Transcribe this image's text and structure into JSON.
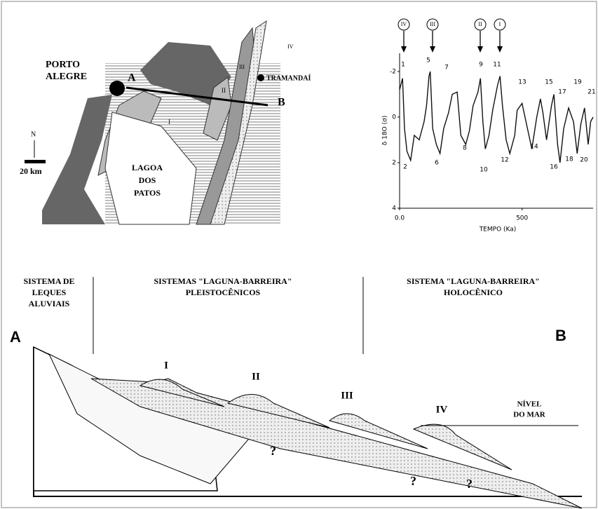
{
  "map": {
    "city": [
      "PORTO",
      "ALEGRE"
    ],
    "point_a": "A",
    "point_b": "B",
    "town": "TRAMANDAÍ",
    "north": "N",
    "scale": "20 km",
    "lagoon": [
      "LAGOA",
      "DOS",
      "PATOS"
    ],
    "barriers": [
      "I",
      "II",
      "III",
      "IV"
    ]
  },
  "chart_data": {
    "type": "line",
    "ylabel": "δ 18O (σ)",
    "xlabel": "TEMPO (Ka)",
    "x": [
      0,
      12,
      20,
      30,
      45,
      60,
      80,
      100,
      110,
      120,
      125,
      135,
      150,
      165,
      180,
      200,
      215,
      235,
      250,
      270,
      285,
      300,
      320,
      330,
      340,
      350,
      365,
      380,
      400,
      410,
      420,
      435,
      450,
      470,
      480,
      500,
      520,
      540,
      560,
      575,
      585,
      600,
      620,
      630,
      645,
      655,
      670,
      690,
      710,
      725,
      740,
      755,
      770,
      780,
      790
    ],
    "series": [
      {
        "color": "#111111",
        "values": [
          -1.2,
          -1.7,
          0.5,
          1.5,
          1.9,
          0.8,
          1.0,
          0.2,
          -0.5,
          -1.8,
          -2.0,
          0.5,
          1.2,
          1.6,
          0.5,
          -0.2,
          -1.0,
          -1.1,
          0.8,
          1.2,
          0.6,
          -0.5,
          -1.1,
          -1.7,
          0.2,
          1.4,
          0.8,
          -0.3,
          -1.4,
          -1.8,
          -0.5,
          1.0,
          1.6,
          0.8,
          -0.3,
          -0.6,
          0.4,
          1.4,
          0.0,
          -0.8,
          -0.2,
          1.0,
          -0.5,
          -1.0,
          1.2,
          2.0,
          0.5,
          -0.4,
          0.2,
          1.6,
          0.3,
          -0.4,
          1.2,
          0.2,
          0.0
        ]
      }
    ],
    "xlim": [
      0,
      790
    ],
    "ylim": [
      4,
      -2.8
    ],
    "xticks": [
      {
        "value": 0,
        "label": "0.0"
      },
      500
    ],
    "yticks": [
      -2,
      0,
      2,
      4
    ],
    "stages": [
      "1",
      "2",
      "5",
      "6",
      "7",
      "8",
      "9",
      "10",
      "11",
      "12",
      "13",
      "14",
      "15",
      "16",
      "17",
      "18",
      "19",
      "20",
      "21"
    ],
    "arrows": [
      "IV",
      "III",
      "II",
      "I"
    ]
  },
  "section": {
    "left": [
      "SISTEMA DE",
      "LEQUES",
      "ALUVIAIS"
    ],
    "middle": [
      "SISTEMAS \"LAGUNA-BARREIRA\"",
      "PLEISTOCÊNICOS"
    ],
    "right": [
      "SISTEMA \"LAGUNA-BARREIRA\"",
      "HOLOCÊNICO"
    ],
    "end_a": "A",
    "end_b": "B",
    "barriers": [
      "I",
      "II",
      "III",
      "IV"
    ],
    "sea_level": [
      "NÍVEL",
      "DO MAR"
    ],
    "unknown": [
      "?",
      "?",
      "?"
    ]
  }
}
